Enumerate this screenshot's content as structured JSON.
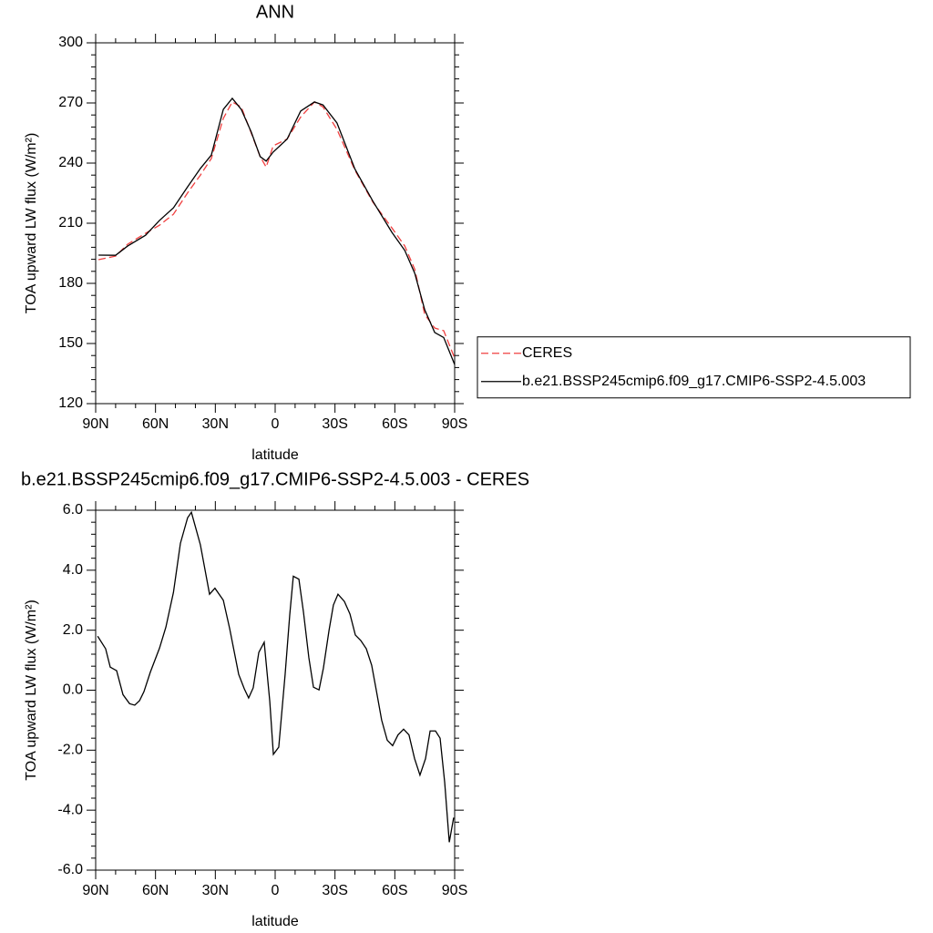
{
  "chart_data": [
    {
      "type": "line",
      "title": "ANN",
      "xlabel": "latitude",
      "ylabel": "TOA upward LW flux (W/m²)",
      "xlim": [
        90,
        -90
      ],
      "xticks": [
        {
          "value": 90,
          "label": "90N"
        },
        {
          "value": 60,
          "label": "60N"
        },
        {
          "value": 30,
          "label": "30N"
        },
        0,
        {
          "value": -30,
          "label": "30S"
        },
        {
          "value": -60,
          "label": "60S"
        },
        {
          "value": -90,
          "label": "90S"
        }
      ],
      "ylim": [
        120,
        300
      ],
      "yticks": [
        120,
        150,
        180,
        210,
        240,
        270,
        300
      ],
      "legend": "outside-right",
      "x": [
        88.6,
        80,
        74,
        65,
        58,
        51,
        44,
        37.5,
        32,
        26,
        21.5,
        17,
        12,
        7.5,
        4.5,
        1,
        -6,
        -12.8,
        -19.7,
        -24,
        -31,
        -40,
        -49,
        -58.5,
        -65,
        -70,
        -75,
        -80,
        -84.5,
        -90
      ],
      "series": [
        {
          "name": "CERES",
          "color": "#f04040",
          "linestyle": "dashed",
          "values": [
            191.8,
            193.6,
            199.5,
            205,
            209,
            214.5,
            225,
            234,
            242.3,
            262.3,
            270.5,
            268,
            255,
            243.2,
            238,
            248.6,
            252,
            263,
            270.5,
            268,
            256.8,
            236.4,
            220.5,
            207.7,
            198.6,
            187,
            164.5,
            157.7,
            156.4,
            142.7
          ]
        },
        {
          "name": "b.e21.BSSP245cmip6.f09_g17.CMIP6-SSP2-4.5.003",
          "color": "#000000",
          "linestyle": "solid",
          "values": [
            194.1,
            194,
            198.6,
            204,
            211.4,
            217.7,
            228,
            237.3,
            244,
            266.8,
            272.3,
            266.8,
            255.5,
            243.2,
            241,
            245.5,
            252,
            266,
            270.5,
            269,
            260,
            237,
            221,
            205.5,
            196.4,
            185,
            166.8,
            155.5,
            153,
            139.5
          ]
        }
      ]
    },
    {
      "type": "line",
      "title": "b.e21.BSSP245cmip6.f09_g17.CMIP6-SSP2-4.5.003 - CERES",
      "xlabel": "latitude",
      "ylabel": "TOA upward LW flux (W/m²)",
      "xlim": [
        90,
        -90
      ],
      "xticks": [
        {
          "value": 90,
          "label": "90N"
        },
        {
          "value": 60,
          "label": "60N"
        },
        {
          "value": 30,
          "label": "30N"
        },
        0,
        {
          "value": -30,
          "label": "30S"
        },
        {
          "value": -60,
          "label": "60S"
        },
        {
          "value": -90,
          "label": "90S"
        }
      ],
      "ylim": [
        -6,
        6
      ],
      "yticks": [
        {
          "value": -6,
          "label": "-6.0"
        },
        {
          "value": -4,
          "label": "-4.0"
        },
        {
          "value": -2,
          "label": "-2.0"
        },
        {
          "value": 0,
          "label": "0.0"
        },
        {
          "value": 2,
          "label": "2.0"
        },
        {
          "value": 4,
          "label": "4.0"
        },
        {
          "value": 6,
          "label": "6.0"
        }
      ],
      "x": [
        89,
        85,
        82.7,
        79.5,
        76.3,
        73,
        70.4,
        68,
        65.8,
        62.6,
        58,
        54.8,
        51,
        47.5,
        43.9,
        42,
        37.5,
        32.9,
        30.2,
        26,
        22.8,
        18.3,
        15.5,
        13.3,
        11,
        8.2,
        5.5,
        2.7,
        0.9,
        -1.8,
        -5,
        -7.3,
        -9.1,
        -11.9,
        -14.2,
        -16.9,
        -19.2,
        -22,
        -24.2,
        -27,
        -29.2,
        -31.5,
        -34.7,
        -37.5,
        -40.2,
        -42.9,
        -45.7,
        -48.4,
        -50.7,
        -53.4,
        -56.2,
        -58.9,
        -61.6,
        -64.4,
        -67.1,
        -69.9,
        -72.6,
        -75.4,
        -77.7,
        -80.4,
        -82.7,
        -85,
        -87.3,
        -89.5
      ],
      "series": [
        {
          "color": "#000000",
          "linestyle": "solid",
          "values": [
            1.8,
            1.38,
            0.77,
            0.65,
            -0.15,
            -0.45,
            -0.5,
            -0.35,
            -0.05,
            0.6,
            1.4,
            2.1,
            3.26,
            4.9,
            5.75,
            5.93,
            4.85,
            3.2,
            3.4,
            3.0,
            2.05,
            0.53,
            0.05,
            -0.26,
            0.08,
            1.26,
            1.6,
            -0.37,
            -2.14,
            -1.9,
            0.53,
            2.5,
            3.8,
            3.7,
            2.6,
            1.08,
            0.1,
            0.01,
            0.74,
            1.99,
            2.84,
            3.2,
            2.96,
            2.54,
            1.84,
            1.66,
            1.38,
            0.83,
            0.0,
            -1.0,
            -1.67,
            -1.85,
            -1.49,
            -1.3,
            -1.49,
            -2.28,
            -2.83,
            -2.28,
            -1.36,
            -1.36,
            -1.6,
            -3.07,
            -5.07,
            -4.25
          ]
        }
      ]
    }
  ]
}
